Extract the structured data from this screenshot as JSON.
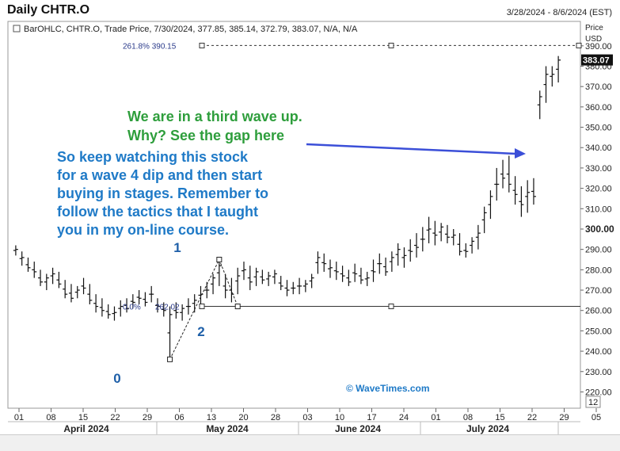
{
  "window": {
    "title": "Daily CHTR.O",
    "date_range": "3/28/2024 - 8/6/2024 (EST)"
  },
  "chart_data": {
    "type": "ohlc",
    "legend": "BarOHLC, CHTR.O, Trade Price, 7/30/2024, 377.85, 385.14, 372.79, 383.07, N/A, N/A",
    "price_axis_label": [
      "Price",
      "USD"
    ],
    "y_ticks": [
      220,
      230,
      240,
      250,
      260,
      270,
      280,
      290,
      300,
      310,
      320,
      330,
      340,
      350,
      360,
      370,
      380,
      390
    ],
    "y_tick_labels": [
      "220.00",
      "230.00",
      "240.00",
      "250.00",
      "260.00",
      "270.00",
      "280.00",
      "290.00",
      "300.00",
      "310.00",
      "320.00",
      "330.00",
      "340.00",
      "350.00",
      "360.00",
      "370.00",
      "380.00",
      "390.00"
    ],
    "ylim": [
      212,
      402
    ],
    "last_price": "383.07",
    "x_day_labels": [
      "01",
      "08",
      "15",
      "22",
      "29",
      "06",
      "13",
      "20",
      "28",
      "03",
      "10",
      "17",
      "24",
      "01",
      "08",
      "15",
      "22",
      "29",
      "05",
      "12"
    ],
    "x_month_labels": [
      "April 2024",
      "May 2024",
      "June 2024",
      "July 2024"
    ],
    "bars": [
      [
        292,
        287,
        290
      ],
      [
        289,
        282,
        286
      ],
      [
        286,
        279,
        281
      ],
      [
        284,
        276,
        279
      ],
      [
        280,
        272,
        274
      ],
      [
        278,
        270,
        276
      ],
      [
        281,
        273,
        278
      ],
      [
        279,
        271,
        273
      ],
      [
        275,
        266,
        268
      ],
      [
        273,
        264,
        266
      ],
      [
        272,
        266,
        270
      ],
      [
        276,
        268,
        271
      ],
      [
        273,
        263,
        265
      ],
      [
        268,
        259,
        262
      ],
      [
        266,
        257,
        260
      ],
      [
        263,
        256,
        258
      ],
      [
        262,
        255,
        259
      ],
      [
        265,
        257,
        262
      ],
      [
        266,
        259,
        261
      ],
      [
        268,
        261,
        264
      ],
      [
        270,
        263,
        266
      ],
      [
        269,
        262,
        264
      ],
      [
        272,
        264,
        268
      ],
      [
        266,
        259,
        262
      ],
      [
        264,
        257,
        260
      ],
      [
        262,
        236,
        258
      ],
      [
        264,
        256,
        259
      ],
      [
        263,
        255,
        261
      ],
      [
        266,
        258,
        262
      ],
      [
        268,
        259,
        265
      ],
      [
        272,
        263,
        268
      ],
      [
        274,
        266,
        270
      ],
      [
        278,
        268,
        276
      ],
      [
        285,
        272,
        282
      ],
      [
        278,
        266,
        270
      ],
      [
        276,
        264,
        268
      ],
      [
        281,
        268,
        277
      ],
      [
        284,
        275,
        280
      ],
      [
        282,
        270,
        274
      ],
      [
        281,
        272,
        279
      ],
      [
        280,
        273,
        275
      ],
      [
        279,
        272,
        277
      ],
      [
        280,
        273,
        278
      ],
      [
        277,
        270,
        272
      ],
      [
        275,
        267,
        270
      ],
      [
        274,
        268,
        271
      ],
      [
        276,
        268,
        272
      ],
      [
        275,
        269,
        273
      ],
      [
        278,
        271,
        276
      ],
      [
        289,
        278,
        286
      ],
      [
        288,
        279,
        283
      ],
      [
        285,
        276,
        281
      ],
      [
        284,
        275,
        279
      ],
      [
        282,
        274,
        277
      ],
      [
        280,
        272,
        274
      ],
      [
        283,
        274,
        278
      ],
      [
        281,
        273,
        275
      ],
      [
        279,
        272,
        276
      ],
      [
        285,
        274,
        279
      ],
      [
        288,
        278,
        283
      ],
      [
        286,
        277,
        279
      ],
      [
        289,
        279,
        286
      ],
      [
        293,
        282,
        290
      ],
      [
        291,
        281,
        287
      ],
      [
        295,
        284,
        289
      ],
      [
        298,
        286,
        291
      ],
      [
        301,
        289,
        295
      ],
      [
        306,
        293,
        300
      ],
      [
        304,
        292,
        297
      ],
      [
        303,
        294,
        301
      ],
      [
        302,
        293,
        296
      ],
      [
        300,
        292,
        297
      ],
      [
        298,
        287,
        289
      ],
      [
        293,
        286,
        289
      ],
      [
        296,
        288,
        294
      ],
      [
        302,
        290,
        298
      ],
      [
        311,
        298,
        308
      ],
      [
        319,
        305,
        316
      ],
      [
        330,
        314,
        322
      ],
      [
        334,
        320,
        325
      ],
      [
        336,
        318,
        322
      ],
      [
        326,
        312,
        317
      ],
      [
        321,
        306,
        312
      ],
      [
        324,
        308,
        318
      ],
      [
        325,
        312,
        316
      ],
      [
        368,
        354,
        365
      ],
      [
        380,
        362,
        376
      ],
      [
        380,
        370,
        376
      ],
      [
        385,
        372,
        383
      ]
    ],
    "annotations": {
      "fib_top_label": "261.8% 390.15",
      "fib_top_value": 390.15,
      "fib_base_label": "0.0%",
      "fib_base_value_label": "262.02",
      "fib_base_value": 262.02,
      "wave_labels": [
        "0",
        "1",
        "2"
      ],
      "wave_points": [
        [
          25,
          236
        ],
        [
          33,
          285
        ],
        [
          36,
          262
        ]
      ],
      "green_note": [
        "We are in a third wave up.",
        "Why? See the gap here"
      ],
      "blue_note": [
        "So keep watching this stock",
        "for a wave 4 dip and then start",
        "buying in stages. Remember to",
        "follow the tactics that I taught",
        "you in my on-line course."
      ],
      "watermark": "© WaveTimes.com",
      "corner_value": "12"
    },
    "colors": {
      "green_note": "#2e9e3c",
      "blue_note": "#1f7ac7",
      "arrow": "#3b4fd8",
      "wave": "#1e5fa8",
      "bars": "#111111"
    }
  }
}
